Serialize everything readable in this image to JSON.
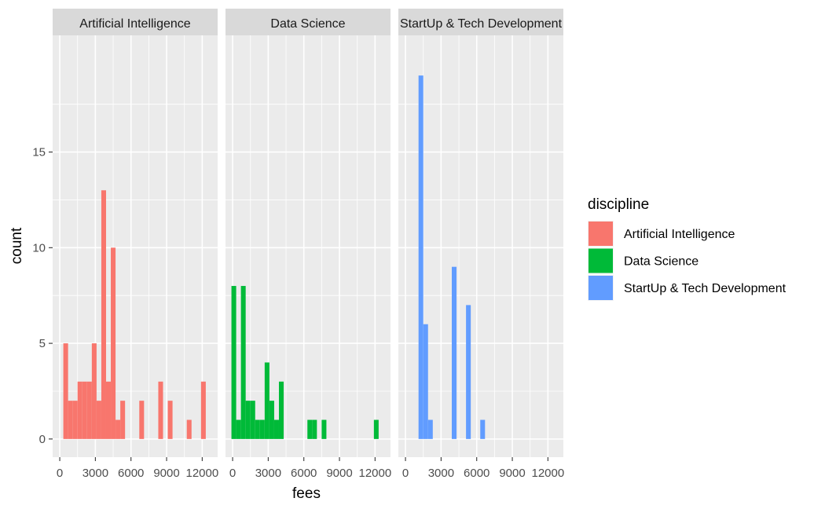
{
  "chart_data": {
    "type": "bar",
    "facets": [
      {
        "title": "Artificial Intelligence",
        "color": "#F8766D",
        "bins": [
          {
            "x0": 300,
            "x1": 700,
            "count": 5
          },
          {
            "x0": 700,
            "x1": 1100,
            "count": 2
          },
          {
            "x0": 1100,
            "x1": 1500,
            "count": 2
          },
          {
            "x0": 1500,
            "x1": 1900,
            "count": 3
          },
          {
            "x0": 1900,
            "x1": 2300,
            "count": 3
          },
          {
            "x0": 2300,
            "x1": 2700,
            "count": 3
          },
          {
            "x0": 2700,
            "x1": 3100,
            "count": 5
          },
          {
            "x0": 3100,
            "x1": 3500,
            "count": 2
          },
          {
            "x0": 3500,
            "x1": 3900,
            "count": 13
          },
          {
            "x0": 3900,
            "x1": 4300,
            "count": 3
          },
          {
            "x0": 4300,
            "x1": 4700,
            "count": 10
          },
          {
            "x0": 4700,
            "x1": 5100,
            "count": 1
          },
          {
            "x0": 5100,
            "x1": 5500,
            "count": 2
          },
          {
            "x0": 6700,
            "x1": 7100,
            "count": 2
          },
          {
            "x0": 8300,
            "x1": 8700,
            "count": 3
          },
          {
            "x0": 9100,
            "x1": 9500,
            "count": 2
          },
          {
            "x0": 10700,
            "x1": 11100,
            "count": 1
          },
          {
            "x0": 11900,
            "x1": 12300,
            "count": 3
          }
        ]
      },
      {
        "title": "Data Science",
        "color": "#00BA38",
        "bins": [
          {
            "x0": -100,
            "x1": 300,
            "count": 8
          },
          {
            "x0": 300,
            "x1": 700,
            "count": 1
          },
          {
            "x0": 700,
            "x1": 1100,
            "count": 8
          },
          {
            "x0": 1100,
            "x1": 1500,
            "count": 2
          },
          {
            "x0": 1500,
            "x1": 1900,
            "count": 2
          },
          {
            "x0": 1900,
            "x1": 2300,
            "count": 1
          },
          {
            "x0": 2300,
            "x1": 2700,
            "count": 1
          },
          {
            "x0": 2700,
            "x1": 3100,
            "count": 4
          },
          {
            "x0": 3100,
            "x1": 3500,
            "count": 2
          },
          {
            "x0": 3500,
            "x1": 3900,
            "count": 1
          },
          {
            "x0": 3900,
            "x1": 4300,
            "count": 3
          },
          {
            "x0": 6300,
            "x1": 6700,
            "count": 1
          },
          {
            "x0": 6700,
            "x1": 7100,
            "count": 1
          },
          {
            "x0": 7500,
            "x1": 7900,
            "count": 1
          },
          {
            "x0": 11900,
            "x1": 12300,
            "count": 1
          }
        ]
      },
      {
        "title": "StartUp & Tech Development",
        "color": "#619CFF",
        "bins": [
          {
            "x0": 1100,
            "x1": 1500,
            "count": 19
          },
          {
            "x0": 1500,
            "x1": 1900,
            "count": 6
          },
          {
            "x0": 1900,
            "x1": 2300,
            "count": 1
          },
          {
            "x0": 3900,
            "x1": 4300,
            "count": 9
          },
          {
            "x0": 5100,
            "x1": 5500,
            "count": 7
          },
          {
            "x0": 6300,
            "x1": 6700,
            "count": 1
          }
        ]
      }
    ],
    "xlabel": "fees",
    "ylabel": "count",
    "xlim": [
      -600,
      13300
    ],
    "ylim": [
      -0.95,
      21.1
    ],
    "xticks": [
      0,
      3000,
      6000,
      9000,
      12000
    ],
    "xtick_labels": [
      "0",
      "3000",
      "6000",
      "9000",
      "12000"
    ],
    "yticks": [
      0,
      5,
      10,
      15
    ],
    "ytick_labels": [
      "0",
      "5",
      "10",
      "15"
    ],
    "grid": true,
    "legend": {
      "title": "discipline",
      "position": "right",
      "entries": [
        "Artificial Intelligence",
        "Data Science",
        "StartUp & Tech Development"
      ]
    }
  }
}
